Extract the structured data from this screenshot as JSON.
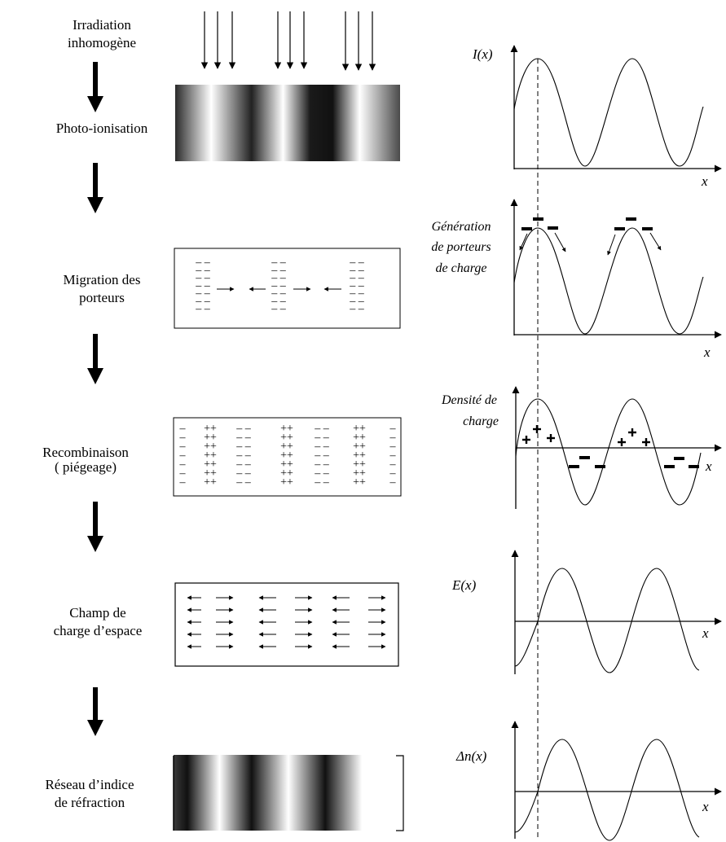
{
  "stages": [
    {
      "id": "irradiation",
      "lines": [
        "Irradiation",
        "inhomogène"
      ]
    },
    {
      "id": "photo",
      "lines": [
        "Photo-ionisation"
      ]
    },
    {
      "id": "migration",
      "lines": [
        "Migration des",
        "porteurs"
      ]
    },
    {
      "id": "recombinaison",
      "lines": [
        "Recombinaison",
        "( piégeage)"
      ]
    },
    {
      "id": "champ",
      "lines": [
        "Champ de",
        "charge d’espace"
      ]
    },
    {
      "id": "reseau",
      "lines": [
        "Réseau d’indice",
        "de réfraction"
      ]
    }
  ],
  "plots": {
    "intensity_label": "I(x)",
    "generation_lines": [
      "Génération",
      "de porteurs",
      "de charge"
    ],
    "density_lines": [
      "Densité de",
      "charge"
    ],
    "field_label": "E(x)",
    "index_label": "Δn(x)",
    "x_label": "x"
  },
  "symbols": {
    "minus": "–",
    "plus": "+",
    "double_minus": "– –",
    "double_plus": "++"
  },
  "colors": {
    "ink": "#000000",
    "background": "#ffffff"
  }
}
